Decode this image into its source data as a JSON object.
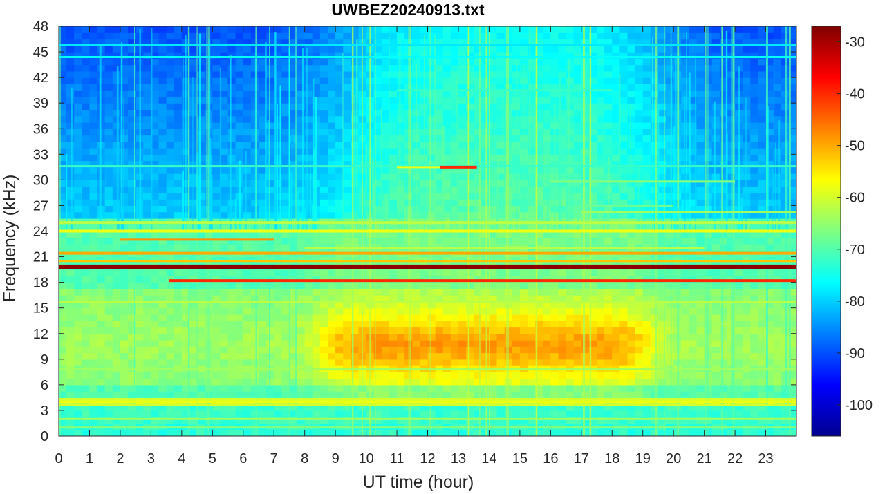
{
  "chart_data": {
    "type": "heatmap",
    "title": "UWBEZ20240913.txt",
    "xlabel": "UT time (hour)",
    "ylabel": "Frequency (kHz)",
    "xlim": [
      0,
      24
    ],
    "ylim": [
      0,
      48
    ],
    "x_ticks": [
      "0",
      "1",
      "2",
      "3",
      "4",
      "5",
      "6",
      "7",
      "8",
      "9",
      "10",
      "11",
      "12",
      "13",
      "14",
      "15",
      "16",
      "17",
      "18",
      "19",
      "20",
      "21",
      "22",
      "23"
    ],
    "y_ticks": [
      "0",
      "3",
      "6",
      "9",
      "12",
      "15",
      "18",
      "21",
      "24",
      "27",
      "30",
      "33",
      "36",
      "39",
      "42",
      "45",
      "48"
    ],
    "colorbar": {
      "colormap": "jet",
      "range": [
        -106,
        -27
      ],
      "ticks": [
        "-30",
        "-40",
        "-50",
        "-60",
        "-70",
        "-80",
        "-90",
        "-100"
      ]
    },
    "features": [
      {
        "name": "strong transmitter line",
        "freq_khz": 19.8,
        "time_hours": [
          0,
          24
        ],
        "level_db": -28
      },
      {
        "name": "transmitter line",
        "freq_khz": 18.2,
        "time_hours": [
          3.6,
          24
        ],
        "level_db": -40
      },
      {
        "name": "transmitter line",
        "freq_khz": 21.4,
        "time_hours": [
          0,
          24
        ],
        "level_db": -50
      },
      {
        "name": "transmitter line",
        "freq_khz": 24.0,
        "time_hours": [
          0,
          24
        ],
        "level_db": -58
      },
      {
        "name": "transmitter line",
        "freq_khz": 25.0,
        "time_hours": [
          0,
          24
        ],
        "level_db": -62
      },
      {
        "name": "transmitter line",
        "freq_khz": 4.0,
        "time_hours": [
          0,
          24
        ],
        "level_db": -58
      },
      {
        "name": "intermittent line",
        "freq_khz": 31.5,
        "time_hours": [
          12.4,
          13.6
        ],
        "level_db": -40
      },
      {
        "name": "daytime broadband enhancement",
        "freq_khz": [
          6,
          17
        ],
        "time_hours": [
          8.5,
          19
        ],
        "level_db": -52
      },
      {
        "name": "night background",
        "freq_khz": [
          25,
          48
        ],
        "time_hours": [
          0,
          7
        ],
        "level_db": -90
      },
      {
        "name": "night background",
        "freq_khz": [
          25,
          48
        ],
        "time_hours": [
          19.5,
          24
        ],
        "level_db": -90
      }
    ]
  }
}
